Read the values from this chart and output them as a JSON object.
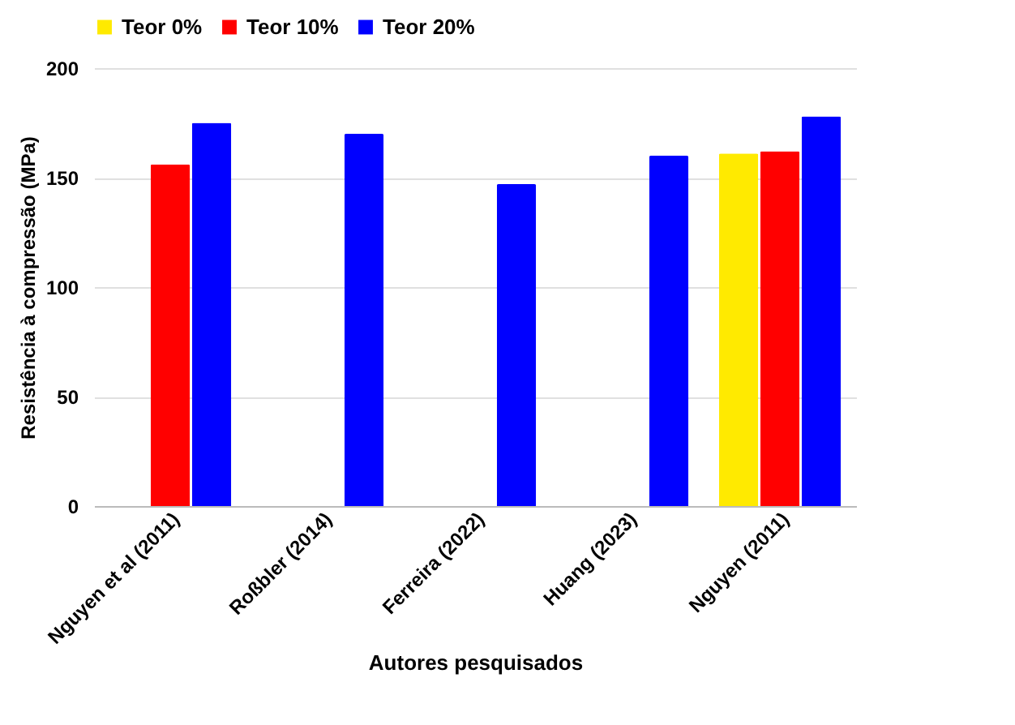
{
  "chart_data": {
    "type": "bar",
    "xlabel": "Autores pesquisados",
    "ylabel": "Resistência à compressão (MPa)",
    "categories": [
      "Nguyen et al (2011)",
      "Roßbler (2014)",
      "Ferreira (2022)",
      "Huang (2023)",
      "Nguyen (2011)"
    ],
    "series": [
      {
        "name": "Teor 0%",
        "color": "#ffea00",
        "values": [
          null,
          null,
          null,
          null,
          161
        ]
      },
      {
        "name": "Teor 10%",
        "color": "#ff0000",
        "values": [
          156,
          null,
          null,
          null,
          162
        ]
      },
      {
        "name": "Teor 20%",
        "color": "#0000ff",
        "values": [
          175,
          170,
          147,
          160,
          178
        ]
      }
    ],
    "ylim": [
      0,
      200
    ],
    "yticks": [
      0,
      50,
      100,
      150,
      200
    ],
    "grid": "y",
    "legend": "top"
  }
}
